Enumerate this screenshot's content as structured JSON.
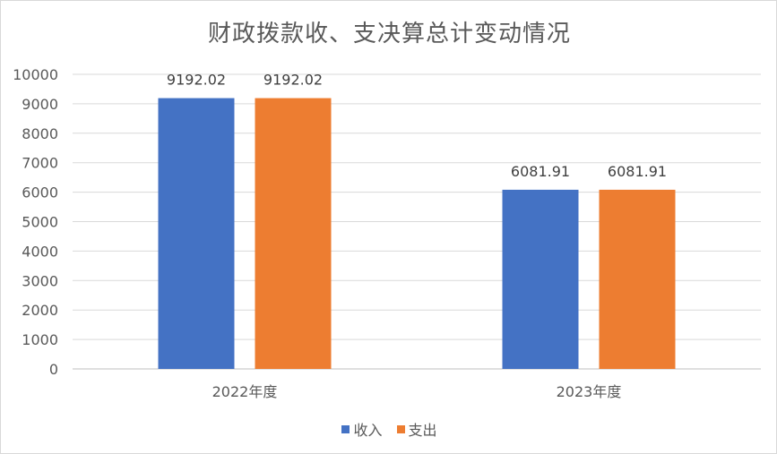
{
  "chart_data": {
    "type": "bar",
    "title": "财政拨款收、支决算总计变动情况",
    "categories": [
      "2022年度",
      "2023年度"
    ],
    "series": [
      {
        "name": "收入",
        "values": [
          9192.02,
          6081.91
        ],
        "color": "#4472C4"
      },
      {
        "name": "支出",
        "values": [
          9192.02,
          6081.91
        ],
        "color": "#ED7D31"
      }
    ],
    "data_labels": [
      [
        "9192.02",
        "6081.91"
      ],
      [
        "9192.02",
        "6081.91"
      ]
    ],
    "ylim": [
      0,
      10000
    ],
    "yticks": [
      0,
      1000,
      2000,
      3000,
      4000,
      5000,
      6000,
      7000,
      8000,
      9000,
      10000
    ],
    "grid": true,
    "legend_position": "bottom"
  }
}
